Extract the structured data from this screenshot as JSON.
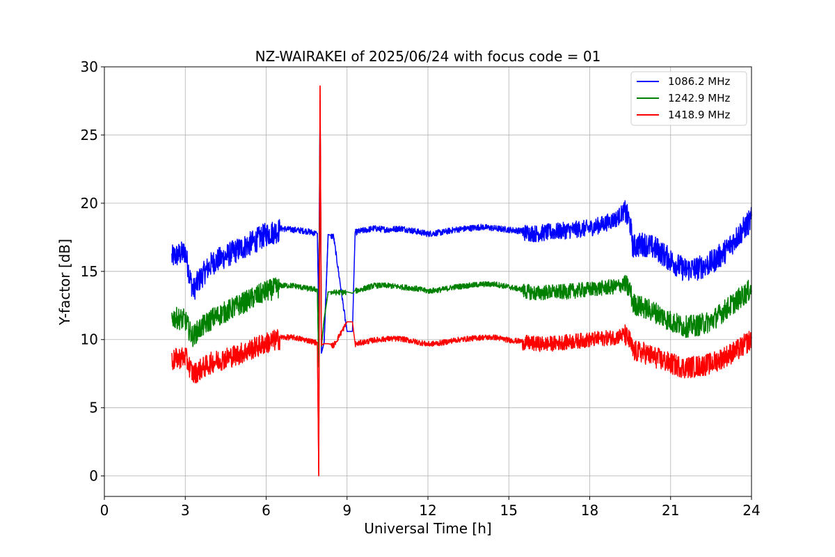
{
  "chart_data": {
    "type": "line",
    "title": "NZ-WAIRAKEI of 2025/06/24 with focus code = 01",
    "xlabel": "Universal Time [h]",
    "ylabel": "Y-factor [dB]",
    "xlim": [
      0,
      24
    ],
    "ylim": [
      -1.5,
      30
    ],
    "x_ticks": [
      0,
      3,
      6,
      9,
      12,
      15,
      18,
      21,
      24
    ],
    "y_ticks": [
      0,
      5,
      10,
      15,
      20,
      25,
      30
    ],
    "grid": true,
    "legend_position": "top-right",
    "x": [
      2.5,
      2.75,
      3.0,
      3.2,
      3.3,
      3.5,
      3.75,
      4.0,
      4.5,
      5.0,
      5.5,
      6.0,
      6.5,
      7.0,
      7.5,
      7.9,
      7.95,
      8.0,
      8.05,
      8.15,
      8.3,
      8.5,
      9.0,
      9.2,
      9.3,
      9.5,
      10.0,
      10.5,
      11.0,
      11.5,
      12.0,
      12.5,
      13.0,
      13.5,
      14.0,
      14.5,
      15.0,
      15.5,
      16.0,
      16.5,
      17.0,
      17.5,
      18.0,
      18.5,
      19.0,
      19.3,
      19.5,
      19.6,
      20.0,
      20.5,
      21.0,
      21.5,
      22.0,
      22.5,
      23.0,
      23.5,
      24.0
    ],
    "series": [
      {
        "name": "1086.2 MHz",
        "color": "#0000ff",
        "values": [
          16.2,
          16.4,
          16.6,
          14.5,
          13.8,
          14.5,
          15.2,
          15.8,
          16.3,
          16.8,
          17.3,
          17.9,
          18.2,
          18.1,
          18.0,
          17.8,
          12.0,
          27.5,
          9.0,
          9.8,
          17.7,
          17.6,
          10.6,
          10.6,
          17.9,
          18.0,
          18.2,
          18.1,
          18.2,
          18.0,
          17.8,
          17.9,
          18.1,
          18.2,
          18.3,
          18.2,
          18.1,
          18.0,
          17.9,
          18.0,
          18.1,
          18.2,
          18.3,
          18.6,
          19.0,
          19.6,
          18.7,
          17.0,
          17.2,
          16.8,
          16.0,
          15.3,
          15.4,
          15.8,
          16.6,
          17.8,
          19.0
        ]
      },
      {
        "name": "1242.9 MHz",
        "color": "#008000",
        "values": [
          11.8,
          11.7,
          11.6,
          10.6,
          10.4,
          10.9,
          11.3,
          11.7,
          12.2,
          12.7,
          13.2,
          13.7,
          14.0,
          14.0,
          13.8,
          13.7,
          8.0,
          27.0,
          9.5,
          11.5,
          13.5,
          13.5,
          13.5,
          13.4,
          13.6,
          13.7,
          14.0,
          14.0,
          13.9,
          13.8,
          13.6,
          13.7,
          13.9,
          14.0,
          14.1,
          14.1,
          13.9,
          13.7,
          13.5,
          13.6,
          13.6,
          13.7,
          13.8,
          13.9,
          14.0,
          14.2,
          13.8,
          12.8,
          12.5,
          12.1,
          11.5,
          11.1,
          11.2,
          11.5,
          12.3,
          13.1,
          13.9
        ]
      },
      {
        "name": "1418.9 MHz",
        "color": "#ff0000",
        "values": [
          8.6,
          8.8,
          8.9,
          8.0,
          7.6,
          7.9,
          8.2,
          8.5,
          8.8,
          9.1,
          9.5,
          9.9,
          10.2,
          10.2,
          10.0,
          9.8,
          0.0,
          28.6,
          9.6,
          9.7,
          9.7,
          9.6,
          11.3,
          11.3,
          9.7,
          9.8,
          10.0,
          10.1,
          10.1,
          9.9,
          9.7,
          9.8,
          10.0,
          10.1,
          10.2,
          10.2,
          10.0,
          9.9,
          9.8,
          9.8,
          9.9,
          10.0,
          10.1,
          10.2,
          10.3,
          10.5,
          10.0,
          9.3,
          9.2,
          8.8,
          8.4,
          8.1,
          8.2,
          8.4,
          8.9,
          9.4,
          10.2
        ]
      }
    ],
    "noise_amplitude": [
      0.9,
      0.8,
      0.8
    ],
    "noise_note": ""
  }
}
